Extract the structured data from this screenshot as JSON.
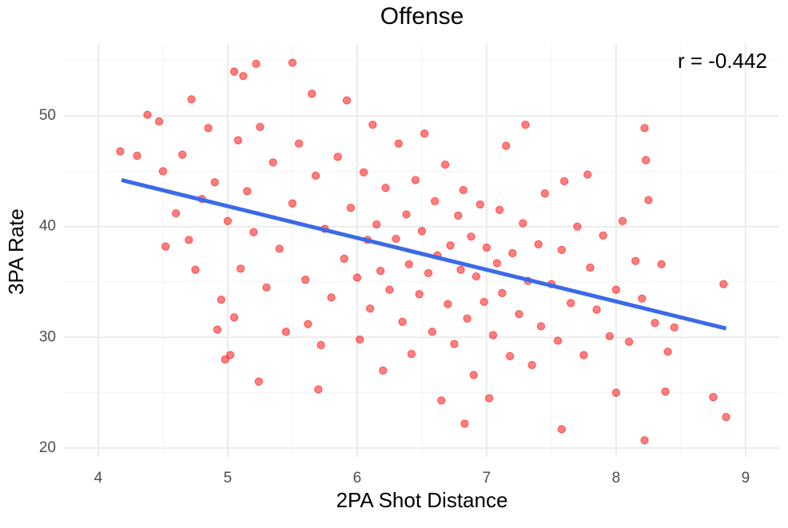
{
  "chart_data": {
    "type": "scatter",
    "title": "Offense",
    "xlabel": "2PA Shot Distance",
    "ylabel": "3PA Rate",
    "annotation": "r = -0.442",
    "color": "#ff0000",
    "trend_color": "#3b6ae8",
    "x": [
      4.17,
      4.3,
      4.38,
      4.47,
      4.72,
      5.05,
      5.12,
      5.22,
      5.5,
      5.65,
      8.22,
      8.23,
      8.22,
      8.85,
      8.83,
      8.75,
      7.58,
      6.83,
      5.24,
      5.7,
      4.98,
      5.02,
      8.0,
      8.38,
      4.5,
      4.52,
      4.6,
      4.65,
      4.7,
      4.75,
      4.8,
      4.85,
      4.9,
      4.92,
      4.95,
      5.0,
      5.05,
      5.08,
      5.1,
      5.15,
      5.2,
      5.25,
      5.3,
      5.35,
      5.4,
      5.45,
      5.5,
      5.55,
      5.6,
      5.62,
      5.68,
      5.72,
      5.75,
      5.8,
      5.85,
      5.9,
      5.92,
      5.95,
      6.0,
      6.02,
      6.05,
      6.08,
      6.1,
      6.12,
      6.15,
      6.18,
      6.2,
      6.22,
      6.25,
      6.3,
      6.32,
      6.35,
      6.38,
      6.4,
      6.42,
      6.45,
      6.48,
      6.5,
      6.52,
      6.55,
      6.58,
      6.6,
      6.62,
      6.65,
      6.68,
      6.7,
      6.72,
      6.75,
      6.78,
      6.8,
      6.82,
      6.85,
      6.88,
      6.9,
      6.92,
      6.95,
      6.98,
      7.0,
      7.02,
      7.05,
      7.08,
      7.1,
      7.12,
      7.15,
      7.18,
      7.2,
      7.25,
      7.28,
      7.3,
      7.32,
      7.35,
      7.4,
      7.42,
      7.45,
      7.5,
      7.55,
      7.58,
      7.6,
      7.65,
      7.7,
      7.75,
      7.78,
      7.8,
      7.85,
      7.9,
      7.95,
      8.0,
      8.05,
      8.1,
      8.15,
      8.2,
      8.25,
      8.3,
      8.35,
      8.4,
      8.45
    ],
    "y": [
      46.8,
      46.4,
      50.1,
      49.5,
      51.5,
      54,
      53.6,
      54.7,
      54.8,
      52,
      48.9,
      46,
      20.7,
      22.8,
      34.8,
      24.6,
      21.7,
      22.2,
      26,
      25.3,
      28,
      28.4,
      25,
      25.1,
      45,
      38.2,
      41.2,
      46.5,
      38.8,
      36.1,
      42.5,
      48.9,
      44,
      30.7,
      33.4,
      40.5,
      31.8,
      47.8,
      36.2,
      43.2,
      39.5,
      49,
      34.5,
      45.8,
      38,
      30.5,
      42.1,
      47.5,
      35.2,
      31.2,
      44.6,
      29.3,
      39.8,
      33.6,
      46.3,
      37.1,
      51.4,
      41.7,
      35.4,
      29.8,
      44.9,
      38.8,
      32.6,
      49.2,
      40.2,
      36,
      27,
      43.5,
      34.3,
      38.9,
      47.5,
      31.4,
      41.1,
      36.6,
      28.5,
      44.2,
      33.9,
      39.6,
      48.4,
      35.8,
      30.5,
      42.3,
      37.4,
      24.3,
      45.6,
      33,
      38.3,
      29.4,
      41,
      36.1,
      43.3,
      31.7,
      39.1,
      26.6,
      35.5,
      42,
      33.2,
      38.1,
      24.5,
      30.2,
      36.7,
      41.5,
      34,
      47.3,
      28.3,
      37.6,
      32.1,
      40.3,
      49.2,
      35.1,
      27.5,
      38.4,
      31,
      43,
      34.8,
      29.7,
      37.9,
      44.1,
      33.1,
      40,
      28.4,
      44.7,
      36.3,
      32.5,
      39.2,
      30.1,
      34.3,
      40.5,
      29.6,
      36.9,
      33.5,
      42.4,
      31.3,
      36.6,
      28.7,
      30.9
    ],
    "trend_x": [
      4.18,
      8.85
    ],
    "trend_y": [
      44.2,
      30.8
    ],
    "xlim": [
      3.735,
      9.26
    ],
    "ylim": [
      19.2,
      56.5
    ],
    "xticks": [
      4,
      5,
      6,
      7,
      8,
      9
    ],
    "yticks": [
      20,
      30,
      40,
      50
    ],
    "xminorticks": [
      4.5,
      5.5,
      6.5,
      7.5,
      8.5
    ],
    "yminorticks": [
      25,
      35,
      45,
      55
    ],
    "grid": true
  }
}
